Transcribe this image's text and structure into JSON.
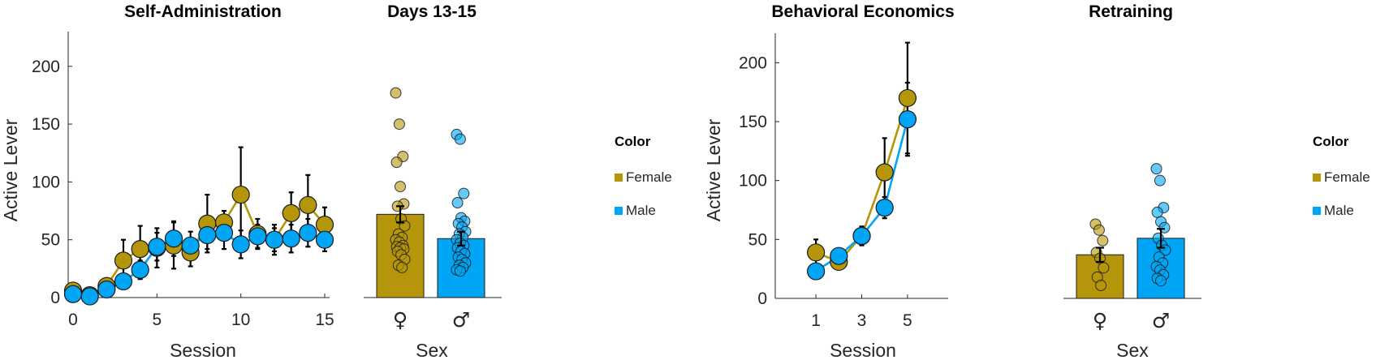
{
  "colors": {
    "female": "#b5960a",
    "male": "#00a6f5",
    "error": "#000000",
    "axis": "#262626"
  },
  "legend": {
    "title": "Color",
    "items": [
      "Female",
      "Male"
    ]
  },
  "chart_data": [
    {
      "type": "line",
      "title": "Self-Administration",
      "xlabel": "Session",
      "ylabel": "Active Lever",
      "xlim": [
        0,
        15
      ],
      "ylim": [
        0,
        230
      ],
      "xticks": [
        0,
        5,
        10,
        15
      ],
      "yticks": [
        0,
        50,
        100,
        150,
        200
      ],
      "x": [
        0,
        1,
        2,
        3,
        4,
        5,
        6,
        7,
        8,
        9,
        10,
        11,
        12,
        13,
        14,
        15
      ],
      "series": [
        {
          "name": "Female",
          "values": [
            6,
            2,
            10,
            32,
            42,
            43,
            45,
            39,
            64,
            65,
            89,
            55,
            50,
            73,
            80,
            63
          ],
          "err": [
            1,
            1,
            2,
            18,
            20,
            17,
            20,
            12,
            25,
            10,
            41,
            13,
            13,
            18,
            26,
            15
          ]
        },
        {
          "name": "Male",
          "values": [
            3,
            1,
            7,
            14,
            24,
            44,
            51,
            45,
            54,
            56,
            46,
            53,
            50,
            51,
            56,
            50
          ],
          "err": [
            1,
            1,
            2,
            4,
            8,
            12,
            15,
            12,
            12,
            14,
            12,
            10,
            10,
            12,
            12,
            10
          ]
        }
      ]
    },
    {
      "type": "bar",
      "title": "Days 13-15",
      "xlabel": "Sex",
      "categories": [
        "♀",
        "♂"
      ],
      "ylim": [
        0,
        230
      ],
      "values": [
        72,
        51
      ],
      "err": [
        7,
        6
      ],
      "points": [
        [
          177,
          150,
          122,
          117,
          96,
          81,
          79,
          68,
          62,
          55,
          52,
          50,
          48,
          45,
          44,
          43,
          42,
          40,
          37,
          33,
          28,
          26
        ],
        [
          141,
          137,
          90,
          82,
          69,
          66,
          64,
          61,
          57,
          55,
          52,
          50,
          47,
          45,
          43,
          40,
          38,
          35,
          33,
          30,
          28,
          26,
          24,
          23
        ]
      ]
    },
    {
      "type": "line",
      "title": "Behavioral Economics",
      "xlabel": "Session",
      "ylabel": "Active Lever",
      "xlim": [
        0.5,
        5.5
      ],
      "ylim": [
        0,
        225
      ],
      "xticks": [
        1,
        3,
        5
      ],
      "yticks": [
        0,
        50,
        100,
        150,
        200
      ],
      "x": [
        1,
        2,
        3,
        4,
        5
      ],
      "series": [
        {
          "name": "Female",
          "values": [
            39,
            31,
            53,
            107,
            170
          ],
          "err": [
            11,
            3,
            8,
            29,
            47
          ]
        },
        {
          "name": "Male",
          "values": [
            23,
            36,
            53,
            77,
            152
          ],
          "err": [
            2,
            2,
            7,
            9,
            31
          ]
        }
      ]
    },
    {
      "type": "bar",
      "title": "Retraining",
      "xlabel": "Sex",
      "categories": [
        "♀",
        "♂"
      ],
      "ylim": [
        0,
        225
      ],
      "values": [
        37,
        51
      ],
      "err": [
        6,
        8
      ],
      "points": [
        [
          63,
          58,
          49,
          39,
          34,
          26,
          18,
          11
        ],
        [
          110,
          100,
          77,
          73,
          65,
          60,
          51,
          45,
          41,
          35,
          30,
          27,
          24,
          20,
          17,
          15
        ]
      ]
    }
  ]
}
